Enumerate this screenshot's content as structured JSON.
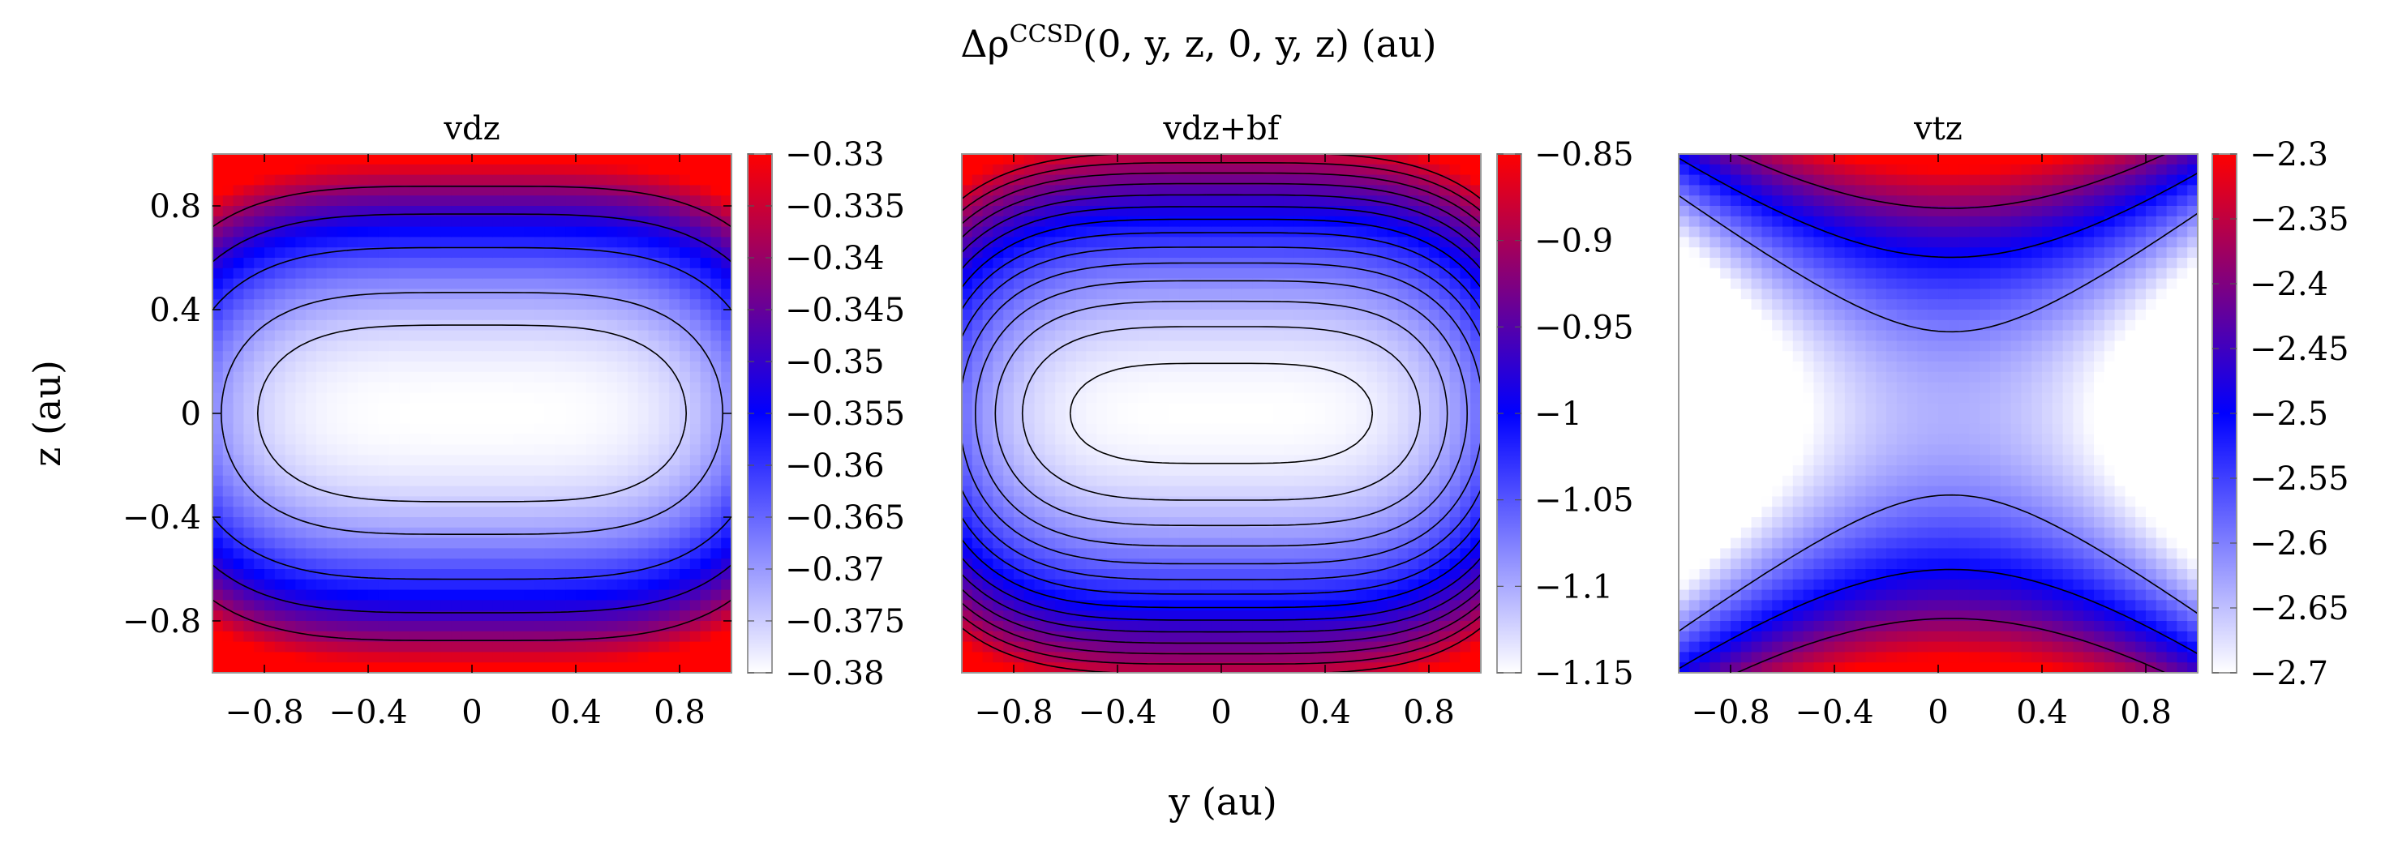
{
  "figure": {
    "title_main": "Δρ",
    "title_sup": "CCSD",
    "title_args": "(0, y, z, 0, y, z) (au)",
    "xlabel": "y (au)",
    "ylabel": "z (au)"
  },
  "colors": {
    "low": "#ffffff",
    "mid": "#0000ff",
    "high": "#ff0000",
    "contour": "#000000",
    "frame": "#999999"
  },
  "chart_data": [
    {
      "type": "heatmap",
      "title": "vdz",
      "x_range": [
        -1,
        1
      ],
      "y_range": [
        -1,
        1
      ],
      "xticks": [
        -0.8,
        -0.4,
        0,
        0.4,
        0.8
      ],
      "xtick_labels": [
        "−0.8",
        "−0.4",
        "0",
        "0.4",
        "0.8"
      ],
      "yticks": [
        -0.8,
        -0.4,
        0,
        0.4,
        0.8
      ],
      "ytick_labels": [
        "−0.8",
        "−0.4",
        "0",
        "0.4",
        "0.8"
      ],
      "colorbar": {
        "min": -0.38,
        "max": -0.33,
        "ticks": [
          -0.33,
          -0.335,
          -0.34,
          -0.345,
          -0.35,
          -0.355,
          -0.36,
          -0.365,
          -0.37,
          -0.375,
          -0.38
        ],
        "tick_labels": [
          "−0.33",
          "−0.335",
          "−0.34",
          "−0.345",
          "−0.35",
          "−0.355",
          "−0.36",
          "−0.365",
          "−0.37",
          "−0.375",
          "−0.38"
        ]
      },
      "contour_levels": [
        -0.375,
        -0.37,
        -0.36,
        -0.35,
        -0.34
      ]
    },
    {
      "type": "heatmap",
      "title": "vdz+bf",
      "x_range": [
        -1,
        1
      ],
      "y_range": [
        -1,
        1
      ],
      "xticks": [
        -0.8,
        -0.4,
        0,
        0.4,
        0.8
      ],
      "xtick_labels": [
        "−0.8",
        "−0.4",
        "0",
        "0.4",
        "0.8"
      ],
      "colorbar": {
        "min": -1.15,
        "max": -0.85,
        "ticks": [
          -0.85,
          -0.9,
          -0.95,
          -1,
          -1.05,
          -1.1,
          -1.15
        ],
        "tick_labels": [
          "−0.85",
          "−0.9",
          "−0.95",
          "−1",
          "−1.05",
          "−1.1",
          "−1.15"
        ]
      },
      "contour_levels": [
        -1.14,
        -1.12,
        -1.1,
        -1.08,
        -1.06,
        -1.04,
        -1.02,
        -1,
        -0.98,
        -0.96,
        -0.94,
        -0.92,
        -0.9,
        -0.88
      ]
    },
    {
      "type": "heatmap",
      "title": "vtz",
      "x_range": [
        -1,
        1
      ],
      "y_range": [
        -1,
        1
      ],
      "xticks": [
        -0.8,
        -0.4,
        0,
        0.4,
        0.8
      ],
      "xtick_labels": [
        "−0.8",
        "−0.4",
        "0",
        "0.4",
        "0.8"
      ],
      "colorbar": {
        "min": -2.7,
        "max": -2.3,
        "ticks": [
          -2.3,
          -2.35,
          -2.4,
          -2.45,
          -2.5,
          -2.55,
          -2.6,
          -2.65,
          -2.7
        ],
        "tick_labels": [
          "−2.3",
          "−2.35",
          "−2.4",
          "−2.45",
          "−2.5",
          "−2.55",
          "−2.6",
          "−2.65",
          "−2.7"
        ]
      },
      "contour_levels": [
        -2.6,
        -2.5,
        -2.4
      ]
    }
  ]
}
